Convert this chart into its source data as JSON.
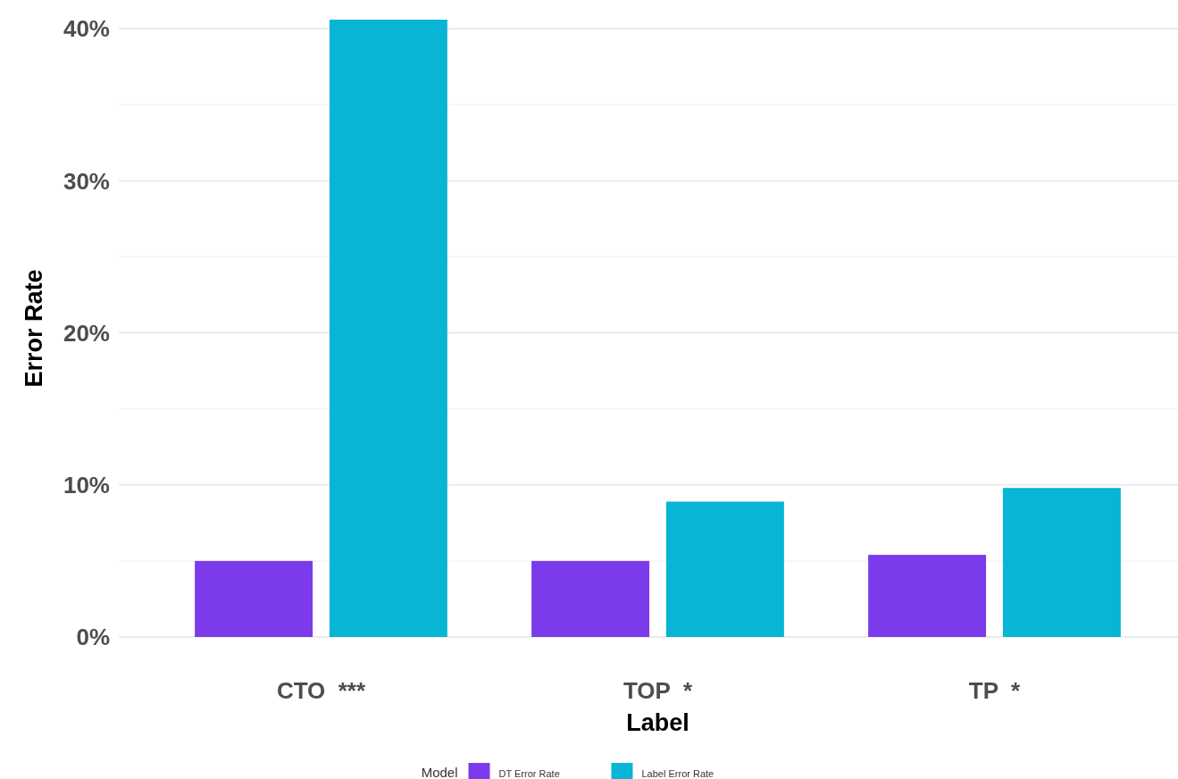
{
  "chart_data": {
    "type": "bar",
    "xlabel": "Label",
    "ylabel": "Error Rate",
    "legend_title": "Model",
    "legend": "bottom",
    "grid": "y",
    "categories": [
      "CTO  ***",
      "TOP  *",
      "TP  *"
    ],
    "series": [
      {
        "name": "DT Error Rate",
        "color": "#7b3bea",
        "values": [
          5.0,
          5.0,
          5.4
        ]
      },
      {
        "name": "Label Error Rate",
        "color": "#08b5d5",
        "values": [
          40.6,
          8.9,
          9.8
        ]
      }
    ],
    "ylim": [
      0,
      40.6
    ],
    "yticks": [
      {
        "value": 0,
        "label": "0%"
      },
      {
        "value": 5,
        "label": null
      },
      {
        "value": 10,
        "label": "10%"
      },
      {
        "value": 15,
        "label": null
      },
      {
        "value": 20,
        "label": "20%"
      },
      {
        "value": 25,
        "label": null
      },
      {
        "value": 30,
        "label": "30%"
      },
      {
        "value": 35,
        "label": null
      },
      {
        "value": 40,
        "label": "40%"
      }
    ]
  }
}
